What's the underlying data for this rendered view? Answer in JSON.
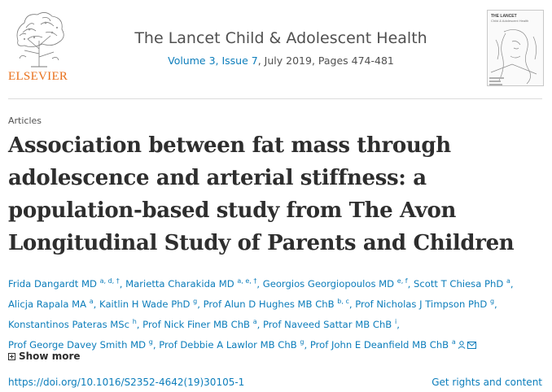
{
  "publisher": {
    "logo_icon": "elsevier-tree-icon",
    "name": "ELSEVIER"
  },
  "journal": {
    "title": "The Lancet Child & Adolescent Health",
    "issue_link": "Volume 3, Issue 7",
    "issue_rest": ", July 2019, Pages 474-481",
    "cover_title": "THE LANCET",
    "cover_subtitle": "Child & Adolescent Health"
  },
  "article": {
    "section": "Articles",
    "title": "Association between fat mass through adolescence and arterial stiffness: a population-based study from The Avon Longitudinal Study of Parents and Children"
  },
  "authors": [
    {
      "name": "Frida Dangardt MD",
      "sup": "a, d, †"
    },
    {
      "name": "Marietta Charakida MD",
      "sup": "a, e, †"
    },
    {
      "name": "Georgios Georgiopoulos MD",
      "sup": "e, f"
    },
    {
      "name": "Scott T Chiesa PhD",
      "sup": "a"
    },
    {
      "name": "Alicja Rapala MA",
      "sup": "a"
    },
    {
      "name": "Kaitlin H Wade PhD",
      "sup": "g"
    },
    {
      "name": "Prof Alun D Hughes MB ChB",
      "sup": "b, c"
    },
    {
      "name": "Prof Nicholas J Timpson PhD",
      "sup": "g"
    },
    {
      "name": "Konstantinos Pateras MSc",
      "sup": "h"
    },
    {
      "name": "Prof Nick Finer MB ChB",
      "sup": "a"
    },
    {
      "name": "Prof Naveed Sattar MB ChB",
      "sup": "i"
    },
    {
      "name": "Prof George Davey Smith MD",
      "sup": "g"
    },
    {
      "name": "Prof Debbie A Lawlor MB ChB",
      "sup": "g"
    },
    {
      "name": "Prof John E Deanfield MB ChB",
      "sup": "a",
      "icons": [
        "person-icon",
        "envelope-icon"
      ]
    }
  ],
  "show_more": {
    "label": "Show more",
    "icon": "plus-box-icon"
  },
  "doi": "https://doi.org/10.1016/S2352-4642(19)30105-1",
  "rights": "Get rights and content",
  "colors": {
    "link": "#0c7dbb",
    "elsevier_orange": "#e9711c",
    "text": "#2e2e2e"
  }
}
